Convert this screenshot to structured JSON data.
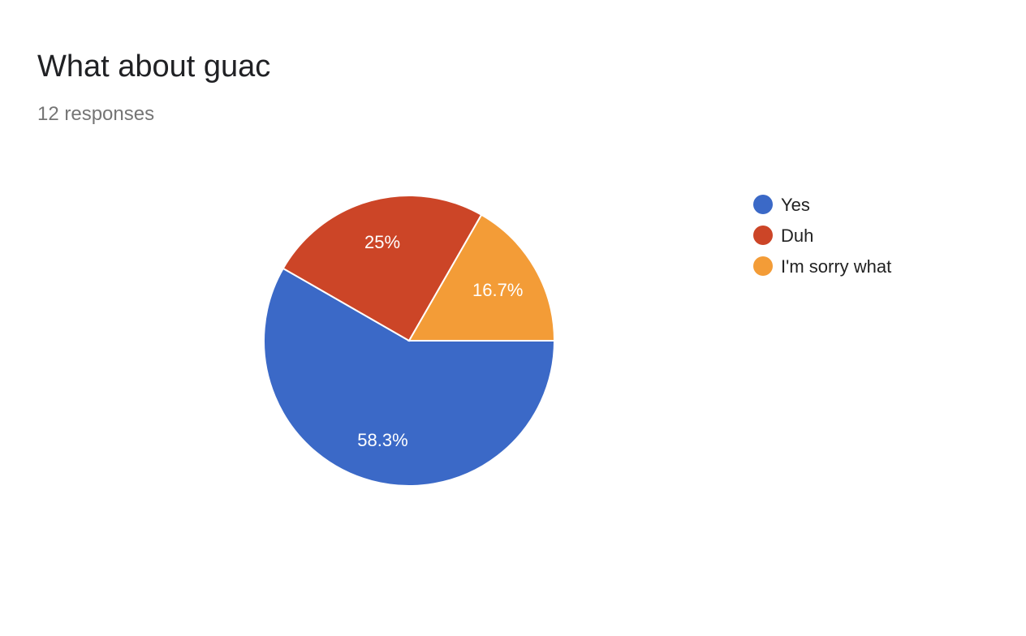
{
  "header": {
    "title": "What about guac",
    "responses": "12 responses"
  },
  "chart_data": {
    "type": "pie",
    "title": "What about guac",
    "slices": [
      {
        "label": "Yes",
        "value": 58.3,
        "display": "58.3%",
        "color": "#3b69c7"
      },
      {
        "label": "Duh",
        "value": 25,
        "display": "25%",
        "color": "#cc4527"
      },
      {
        "label": "I'm sorry what",
        "value": 16.7,
        "display": "16.7%",
        "color": "#f39c37"
      }
    ],
    "start_angle_deg": 90,
    "direction": "clockwise",
    "legend_position": "right"
  }
}
